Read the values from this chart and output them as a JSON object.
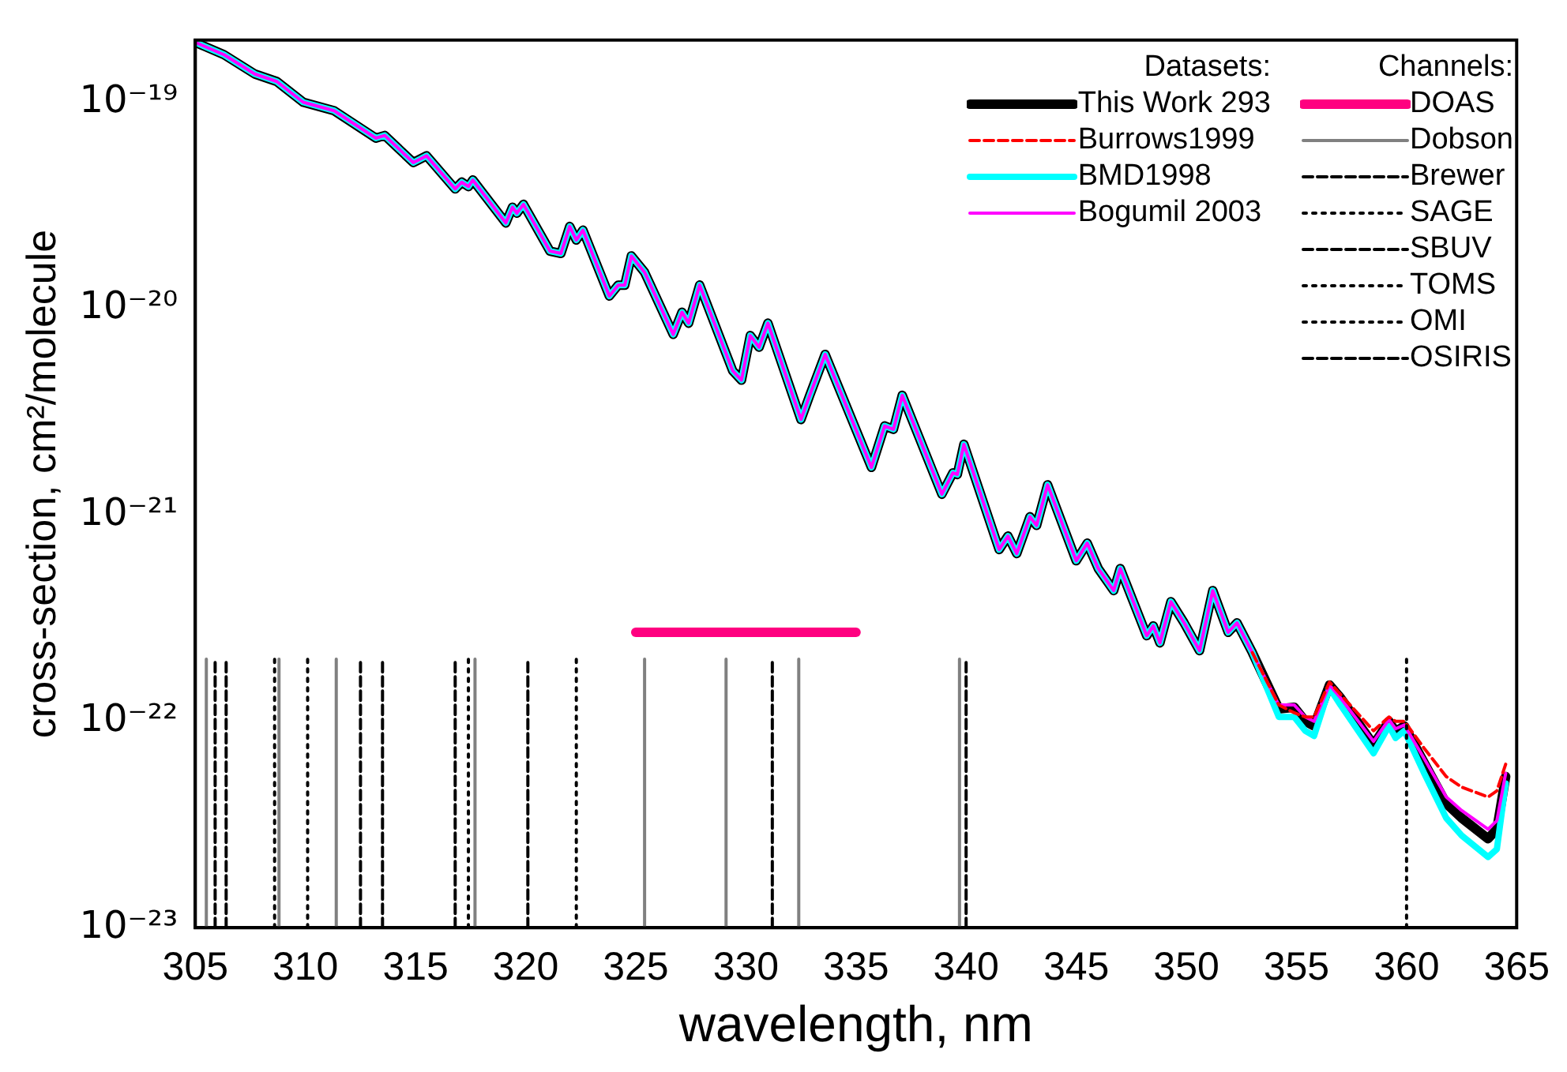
{
  "chart_data": {
    "type": "line",
    "xlabel": "wavelength, nm",
    "ylabel": "cross-section, cm²/molecule",
    "log": "y",
    "grid": false,
    "legend": "top right",
    "legend_title": "Datasets:",
    "annotations": [
      "Channels:"
    ],
    "xlim": [
      305,
      365
    ],
    "xticks": [
      305,
      310,
      315,
      320,
      325,
      330,
      335,
      340,
      345,
      350,
      355,
      360,
      365
    ],
    "ylim": [
      1e-23,
      2e-19
    ],
    "yticks": [
      {
        "value": 1e-23,
        "label": "10⁻²³"
      },
      {
        "value": 1e-22,
        "label": "10⁻²²"
      },
      {
        "value": 1e-21,
        "label": "10⁻²¹"
      },
      {
        "value": 1e-20,
        "label": "10⁻²⁰"
      },
      {
        "value": 1e-19,
        "label": "10⁻¹⁹"
      }
    ],
    "x": [
      305.0,
      306.3,
      307.7,
      308.7,
      309.9,
      311.3,
      313.2,
      313.6,
      314.9,
      315.5,
      316.8,
      317.1,
      317.4,
      317.6,
      319.1,
      319.4,
      319.6,
      319.9,
      321.1,
      321.6,
      322.0,
      322.3,
      322.6,
      323.8,
      324.2,
      324.5,
      324.8,
      325.4,
      326.7,
      327.1,
      327.4,
      327.9,
      329.4,
      329.8,
      330.2,
      330.6,
      331.0,
      332.5,
      332.9,
      333.6,
      335.7,
      336.3,
      336.7,
      337.1,
      338.9,
      339.4,
      339.6,
      339.9,
      341.5,
      341.9,
      342.3,
      342.9,
      343.2,
      343.7,
      345.0,
      345.5,
      346.0,
      346.7,
      347.0,
      348.2,
      348.5,
      348.8,
      349.3,
      349.9,
      350.6,
      351.2,
      351.9,
      352.3,
      353.0,
      354.2,
      354.9,
      355.4,
      355.8,
      356.5,
      357.0,
      358.5,
      359.2,
      359.5,
      359.9,
      360.8,
      361.8,
      362.5,
      363.7,
      364.1,
      364.5
    ],
    "series": [
      {
        "name": "This Work 293",
        "color": "#000000",
        "line_style": "solid",
        "values": [
          1.95e-19,
          1.7e-19,
          1.37e-19,
          1.26e-19,
          1e-19,
          9.1e-20,
          6.7e-20,
          6.9e-20,
          5.1e-20,
          5.5e-20,
          3.8e-20,
          4.1e-20,
          3.9e-20,
          4.2e-20,
          2.6e-20,
          3.1e-20,
          2.9e-20,
          3.2e-20,
          1.9e-20,
          1.85e-20,
          2.5e-20,
          2.15e-20,
          2.4e-20,
          1.15e-20,
          1.3e-20,
          1.3e-20,
          1.8e-20,
          1.5e-20,
          7.5e-21,
          9.6e-21,
          8.5e-21,
          1.3e-20,
          5e-21,
          4.5e-21,
          7.4e-21,
          6.5e-21,
          8.5e-21,
          2.9e-21,
          3.8e-21,
          6e-21,
          1.7e-21,
          2.7e-21,
          2.6e-21,
          3.8e-21,
          1.26e-21,
          1.6e-21,
          1.57e-21,
          2.2e-21,
          6.8e-22,
          7.9e-22,
          6.5e-22,
          9.8e-22,
          8.9e-22,
          1.4e-21,
          6e-22,
          7.3e-22,
          5.5e-22,
          4.3e-22,
          5.5e-22,
          2.6e-22,
          2.9e-22,
          2.4e-22,
          3.8e-22,
          3e-22,
          2.2e-22,
          4.3e-22,
          2.7e-22,
          3e-22,
          2.15e-22,
          1.15e-22,
          1.17e-22,
          1e-22,
          9.5e-23,
          1.5e-22,
          1.3e-22,
          7.7e-23,
          1e-22,
          8.9e-23,
          9.5e-23,
          6.3e-23,
          4e-23,
          3.4e-23,
          2.7e-23,
          3e-23,
          5.4e-23
        ]
      },
      {
        "name": "Burrows1999",
        "color": "#ff0000",
        "line_style": "dashed",
        "values": [
          null,
          null,
          null,
          null,
          null,
          null,
          null,
          null,
          null,
          null,
          null,
          null,
          null,
          null,
          null,
          null,
          null,
          null,
          null,
          null,
          null,
          null,
          null,
          null,
          null,
          null,
          null,
          null,
          null,
          null,
          null,
          null,
          null,
          null,
          null,
          null,
          null,
          null,
          null,
          null,
          null,
          null,
          null,
          null,
          null,
          null,
          null,
          null,
          null,
          null,
          null,
          null,
          null,
          null,
          null,
          null,
          null,
          null,
          null,
          null,
          null,
          null,
          null,
          null,
          null,
          null,
          null,
          null,
          2.15e-22,
          1.2e-22,
          1.1e-22,
          1.05e-22,
          1.05e-22,
          1.55e-22,
          1.35e-22,
          9e-23,
          1.05e-22,
          1e-22,
          1e-22,
          7.4e-23,
          5.4e-23,
          4.8e-23,
          4.3e-23,
          4.6e-23,
          6.2e-23
        ]
      },
      {
        "name": "BMD1998",
        "color": "#00ffff",
        "line_style": "solid",
        "values": [
          1.95e-19,
          1.7e-19,
          1.37e-19,
          1.26e-19,
          1e-19,
          9.1e-20,
          6.7e-20,
          6.9e-20,
          5.1e-20,
          5.5e-20,
          3.8e-20,
          4.1e-20,
          3.9e-20,
          4.2e-20,
          2.6e-20,
          3.1e-20,
          2.9e-20,
          3.2e-20,
          1.9e-20,
          1.85e-20,
          2.5e-20,
          2.15e-20,
          2.4e-20,
          1.15e-20,
          1.3e-20,
          1.3e-20,
          1.8e-20,
          1.5e-20,
          7.5e-21,
          9.6e-21,
          8.5e-21,
          1.3e-20,
          5e-21,
          4.5e-21,
          7.4e-21,
          6.5e-21,
          8.5e-21,
          2.9e-21,
          3.8e-21,
          6e-21,
          1.7e-21,
          2.7e-21,
          2.6e-21,
          3.8e-21,
          1.26e-21,
          1.6e-21,
          1.57e-21,
          2.2e-21,
          6.8e-22,
          7.9e-22,
          6.5e-22,
          9.8e-22,
          8.9e-22,
          1.4e-21,
          6e-22,
          7.3e-22,
          5.5e-22,
          4.3e-22,
          5.5e-22,
          2.6e-22,
          2.9e-22,
          2.4e-22,
          3.8e-22,
          3e-22,
          2.2e-22,
          4.3e-22,
          2.7e-22,
          3e-22,
          2.15e-22,
          1.05e-22,
          1.05e-22,
          9e-23,
          8.5e-23,
          1.45e-22,
          1.2e-22,
          7e-23,
          9.5e-23,
          8.3e-23,
          9e-23,
          5.6e-23,
          3.4e-23,
          2.8e-23,
          2.2e-23,
          2.4e-23,
          5e-23
        ]
      },
      {
        "name": "Bogumil 2003",
        "color": "#ff00ff",
        "line_style": "solid",
        "values": [
          1.95e-19,
          1.7e-19,
          1.37e-19,
          1.26e-19,
          1e-19,
          9.1e-20,
          6.7e-20,
          6.9e-20,
          5.1e-20,
          5.5e-20,
          3.8e-20,
          4.1e-20,
          3.9e-20,
          4.2e-20,
          2.6e-20,
          3.1e-20,
          2.9e-20,
          3.2e-20,
          1.9e-20,
          1.85e-20,
          2.5e-20,
          2.15e-20,
          2.4e-20,
          1.15e-20,
          1.3e-20,
          1.3e-20,
          1.8e-20,
          1.5e-20,
          7.5e-21,
          9.6e-21,
          8.5e-21,
          1.3e-20,
          5e-21,
          4.5e-21,
          7.4e-21,
          6.5e-21,
          8.5e-21,
          2.9e-21,
          3.8e-21,
          6e-21,
          1.7e-21,
          2.7e-21,
          2.6e-21,
          3.8e-21,
          1.26e-21,
          1.6e-21,
          1.57e-21,
          2.2e-21,
          6.8e-22,
          7.9e-22,
          6.5e-22,
          9.8e-22,
          8.9e-22,
          1.4e-21,
          6e-22,
          7.3e-22,
          5.5e-22,
          4.3e-22,
          5.5e-22,
          2.6e-22,
          2.9e-22,
          2.4e-22,
          3.8e-22,
          3e-22,
          2.2e-22,
          4.3e-22,
          2.7e-22,
          3e-22,
          2.15e-22,
          1.2e-22,
          1.2e-22,
          1.05e-22,
          1e-22,
          1.5e-22,
          1.3e-22,
          8e-23,
          1.02e-22,
          9.2e-23,
          9.6e-23,
          6.6e-23,
          4.3e-23,
          3.7e-23,
          3e-23,
          3.3e-23,
          5.6e-23
        ]
      },
      {
        "name": "DOAS",
        "color": "#ff0080",
        "line_style": "solid",
        "x": [
          325,
          335
        ],
        "values": [
          2.7e-22,
          2.7e-22
        ]
      },
      {
        "name": "Dobson",
        "color": "#808080",
        "line_style": "solid",
        "x": [
          305.5,
          305.5
        ],
        "values": [
          1e-23,
          2e-22
        ]
      },
      {
        "name": "Brewer",
        "color": "#000000",
        "line_style": "dashed",
        "x": [
          306.4,
          306.4
        ],
        "values": [
          1e-23,
          2e-22
        ]
      },
      {
        "name": "SAGE",
        "color": "#000000",
        "line_style": "dotted",
        "x": [
          310.1,
          310.1
        ],
        "values": [
          1e-23,
          2e-22
        ]
      },
      {
        "name": "SBUV",
        "color": "#000000",
        "line_style": "dashed",
        "x": [
          312.5,
          312.5
        ],
        "values": [
          1e-23,
          2e-22
        ]
      },
      {
        "name": "TOMS",
        "color": "#000000",
        "line_style": "dotted",
        "x": [
          308.6,
          308.6
        ],
        "values": [
          1e-23,
          2e-22
        ]
      },
      {
        "name": "OMI",
        "color": "#000000",
        "line_style": "dotted",
        "x": [
          317.4,
          317.4
        ],
        "values": [
          1e-23,
          2e-22
        ]
      },
      {
        "name": "OSIRIS",
        "color": "#000000",
        "line_style": "dashed",
        "x": [
          305.9,
          305.9
        ],
        "values": [
          1e-23,
          2e-22
        ]
      },
      {
        "color": "#808080",
        "line_style": "solid",
        "x": [
          308.8,
          308.8
        ],
        "values": [
          1e-23,
          2e-22
        ]
      },
      {
        "color": "#808080",
        "line_style": "solid",
        "x": [
          311.4,
          311.4
        ],
        "values": [
          1e-23,
          2e-22
        ]
      },
      {
        "color": "#808080",
        "line_style": "solid",
        "x": [
          317.7,
          317.7
        ],
        "values": [
          1e-23,
          2e-22
        ]
      },
      {
        "color": "#808080",
        "line_style": "solid",
        "x": [
          325.4,
          325.4
        ],
        "values": [
          1e-23,
          2e-22
        ]
      },
      {
        "color": "#808080",
        "line_style": "solid",
        "x": [
          329.1,
          329.1
        ],
        "values": [
          1e-23,
          2e-22
        ]
      },
      {
        "color": "#808080",
        "line_style": "solid",
        "x": [
          332.4,
          332.4
        ],
        "values": [
          1e-23,
          2e-22
        ]
      },
      {
        "color": "#808080",
        "line_style": "solid",
        "x": [
          339.7,
          339.7
        ],
        "values": [
          1e-23,
          2e-22
        ]
      },
      {
        "color": "#000000",
        "line_style": "dashed",
        "x": [
          313.5,
          313.5
        ],
        "values": [
          1e-23,
          2e-22
        ]
      },
      {
        "color": "#000000",
        "line_style": "dashed",
        "x": [
          316.8,
          316.8
        ],
        "values": [
          1e-23,
          2e-22
        ]
      },
      {
        "color": "#000000",
        "line_style": "dashed",
        "x": [
          320.1,
          320.1
        ],
        "values": [
          1e-23,
          2e-22
        ]
      },
      {
        "color": "#000000",
        "line_style": "dashed",
        "x": [
          331.2,
          331.2
        ],
        "values": [
          1e-23,
          2e-22
        ]
      },
      {
        "color": "#000000",
        "line_style": "dotted",
        "x": [
          322.3,
          322.3
        ],
        "values": [
          1e-23,
          2e-22
        ]
      },
      {
        "color": "#000000",
        "line_style": "dotted",
        "x": [
          360.0,
          360.0
        ],
        "values": [
          1e-23,
          2e-22
        ]
      },
      {
        "color": "#000000",
        "line_style": "dashed",
        "x": [
          340.0,
          340.0
        ],
        "values": [
          1e-23,
          2e-22
        ]
      }
    ]
  }
}
